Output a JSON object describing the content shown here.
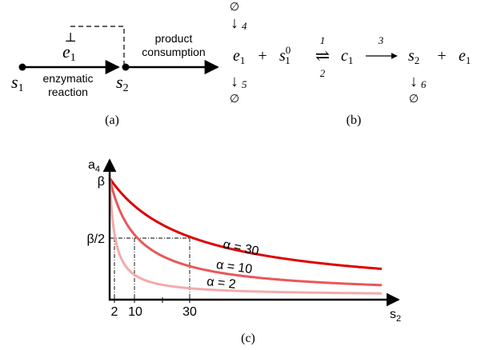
{
  "panel_a": {
    "caption": "(a)",
    "node1_label": "s",
    "node1_sub": "1",
    "node2_label": "s",
    "node2_sub": "2",
    "enzyme_label": "e",
    "enzyme_sub": "1",
    "inhibition_symbol": "⊥",
    "reaction_label_line1": "enzymatic",
    "reaction_label_line2": "reaction",
    "consumption_label_line1": "product",
    "consumption_label_line2": "consumption"
  },
  "panel_b": {
    "caption": "(b)",
    "empty_set": "∅",
    "down_arrow": "↓",
    "rate_4": "4",
    "rate_5": "5",
    "rate_6": "6",
    "rate_1": "1",
    "rate_2": "2",
    "rate_3": "3",
    "plus": "+",
    "e_var": "e",
    "s_var": "s",
    "c_var": "c",
    "sub_1": "1",
    "sub_2": "2",
    "sup_0": "0",
    "equilibrium": "⇌",
    "forward_arrow": "⟶"
  },
  "panel_c": {
    "caption": "(c)",
    "y_axis_label": "a",
    "y_axis_sub": "4",
    "x_axis_label": "s",
    "x_axis_sub": "2",
    "y_tick_beta": "β",
    "y_tick_half": "β/2",
    "x_ticks": [
      "2",
      "10",
      "30"
    ],
    "colors": {
      "alpha30": "#dd0000",
      "alpha10": "#e8575a",
      "alpha2": "#f4aaaa"
    }
  },
  "chart_data": {
    "type": "line",
    "xlabel": "s2",
    "ylabel": "a4",
    "xlim": [
      0,
      100
    ],
    "ylim": [
      0,
      1
    ],
    "x_ticks": [
      2,
      10,
      30
    ],
    "y_ticks": [
      "β/2",
      "β"
    ],
    "series": [
      {
        "name": "α = 30",
        "alpha": 30,
        "color": "#dd0000"
      },
      {
        "name": "α = 10",
        "alpha": 10,
        "color": "#e8575a"
      },
      {
        "name": "α = 2",
        "alpha": 2,
        "color": "#f4aaaa"
      }
    ]
  }
}
